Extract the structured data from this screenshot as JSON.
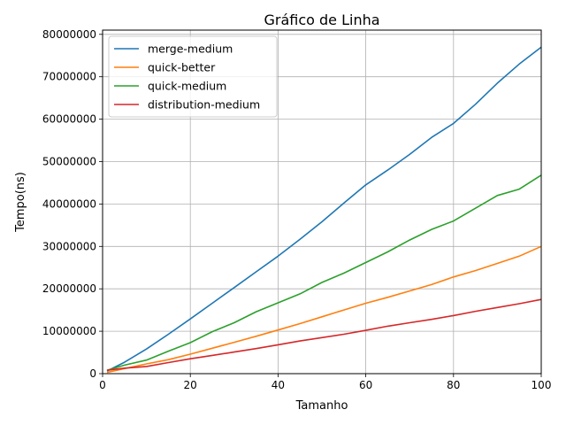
{
  "chart_data": {
    "type": "line",
    "title": "Gráfico de Linha",
    "xlabel": "Tamanho",
    "ylabel": "Tempo(ns)",
    "xlim": [
      0,
      100
    ],
    "ylim": [
      0,
      81000000
    ],
    "xticks": [
      0,
      20,
      40,
      60,
      80,
      100
    ],
    "yticks": [
      0,
      10000000,
      20000000,
      30000000,
      40000000,
      50000000,
      60000000,
      70000000,
      80000000
    ],
    "xtick_labels": [
      "0",
      "20",
      "40",
      "60",
      "80",
      "100"
    ],
    "ytick_labels": [
      "0",
      "10000000",
      "20000000",
      "30000000",
      "40000000",
      "50000000",
      "60000000",
      "70000000",
      "80000000"
    ],
    "grid": true,
    "legend_position": "top-left",
    "x": [
      1,
      5,
      10,
      15,
      20,
      25,
      30,
      35,
      40,
      45,
      50,
      55,
      60,
      65,
      70,
      75,
      80,
      85,
      90,
      95,
      100
    ],
    "series": [
      {
        "name": "merge-medium",
        "color": "#1f77b4",
        "values": [
          600000,
          2700000,
          5800000,
          9300000,
          12900000,
          16600000,
          20300000,
          24000000,
          27700000,
          31700000,
          35800000,
          40200000,
          44500000,
          48000000,
          51700000,
          55700000,
          59000000,
          63500000,
          68500000,
          73000000,
          77000000
        ]
      },
      {
        "name": "quick-better",
        "color": "#ff7f0e",
        "values": [
          300000,
          1200000,
          2300000,
          3300000,
          4600000,
          6000000,
          7400000,
          8800000,
          10300000,
          11800000,
          13400000,
          15000000,
          16600000,
          18000000,
          19500000,
          21000000,
          22800000,
          24300000,
          26000000,
          27700000,
          30000000
        ]
      },
      {
        "name": "quick-medium",
        "color": "#2ca02c",
        "values": [
          800000,
          2000000,
          3200000,
          5300000,
          7300000,
          9900000,
          12000000,
          14600000,
          16700000,
          18800000,
          21500000,
          23700000,
          26200000,
          28700000,
          31500000,
          34000000,
          36000000,
          39000000,
          42000000,
          43500000,
          46800000
        ]
      },
      {
        "name": "distribution-medium",
        "color": "#d62728",
        "values": [
          800000,
          1300000,
          1700000,
          2600000,
          3500000,
          4300000,
          5100000,
          5900000,
          6800000,
          7700000,
          8500000,
          9300000,
          10200000,
          11200000,
          12000000,
          12800000,
          13700000,
          14700000,
          15600000,
          16500000,
          17500000
        ]
      }
    ]
  }
}
